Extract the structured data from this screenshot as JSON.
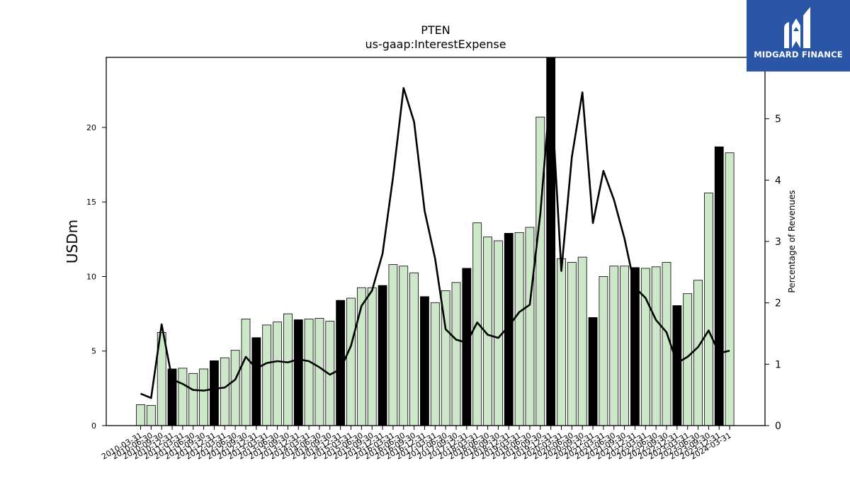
{
  "chart_data": {
    "type": "bar",
    "title": "PTEN",
    "subtitle": "us-gaap:InterestExpense",
    "ylabel": "USDm",
    "y2label": "Percentage of Revenues",
    "ylim": [
      0,
      24.7
    ],
    "y2lim": [
      0,
      6.0
    ],
    "yticks": [
      0,
      5,
      10,
      15,
      20
    ],
    "y2ticks": [
      0,
      1,
      2,
      3,
      4,
      5
    ],
    "legend": "none",
    "grid": false,
    "categories": [
      "2010-03-31",
      "2010-06-30",
      "2010-09-30",
      "2010-12-31",
      "2011-03-31",
      "2011-06-30",
      "2011-09-30",
      "2011-12-31",
      "2012-03-31",
      "2012-06-30",
      "2012-09-30",
      "2012-12-31",
      "2013-03-31",
      "2013-06-30",
      "2013-09-30",
      "2013-12-31",
      "2014-03-31",
      "2014-06-30",
      "2014-09-30",
      "2014-12-31",
      "2015-03-31",
      "2015-06-30",
      "2015-09-30",
      "2015-12-31",
      "2016-03-31",
      "2016-06-30",
      "2016-09-30",
      "2016-12-31",
      "2017-03-31",
      "2017-06-30",
      "2017-09-30",
      "2017-12-31",
      "2018-03-31",
      "2018-06-30",
      "2018-09-30",
      "2018-12-31",
      "2019-03-31",
      "2019-06-30",
      "2019-09-30",
      "2019-12-31",
      "2020-03-31",
      "2020-06-30",
      "2020-09-30",
      "2020-12-31",
      "2021-03-31",
      "2021-06-30",
      "2021-09-30",
      "2021-12-31",
      "2022-03-31",
      "2022-06-30",
      "2022-09-30",
      "2022-12-31",
      "2023-03-31",
      "2023-06-30",
      "2023-09-30",
      "2023-12-31",
      "2024-03-31"
    ],
    "series": [
      {
        "kind": "bar",
        "axis": "left",
        "values": [
          1.4,
          1.35,
          6.25,
          3.8,
          3.85,
          3.5,
          3.8,
          4.35,
          4.55,
          5.05,
          7.15,
          5.9,
          6.75,
          6.95,
          7.5,
          7.1,
          7.15,
          7.2,
          7.0,
          8.4,
          8.55,
          9.25,
          9.25,
          9.4,
          10.8,
          10.7,
          10.25,
          8.65,
          8.25,
          9.05,
          9.6,
          10.55,
          13.6,
          12.65,
          12.4,
          12.9,
          12.95,
          13.3,
          20.7,
          24.9,
          11.2,
          10.95,
          11.3,
          7.25,
          10.0,
          10.7,
          10.7,
          10.6,
          10.55,
          10.65,
          10.95,
          8.05,
          8.85,
          9.75,
          15.6,
          18.7,
          18.3
        ],
        "highlight": [
          3,
          7,
          11,
          15,
          19,
          23,
          27,
          31,
          35,
          39,
          43,
          47,
          51,
          55
        ],
        "colors": {
          "normal": "#cde8c8",
          "highlight": "#000000",
          "edge": "#000000"
        }
      },
      {
        "kind": "line",
        "axis": "right",
        "color": "#000000",
        "values": [
          0.52,
          0.45,
          1.65,
          0.75,
          0.68,
          0.58,
          0.57,
          0.6,
          0.62,
          0.75,
          1.12,
          0.93,
          1.02,
          1.05,
          1.03,
          1.08,
          1.05,
          0.95,
          0.83,
          0.92,
          1.3,
          1.95,
          2.2,
          2.8,
          4.05,
          5.5,
          4.95,
          3.5,
          2.72,
          1.57,
          1.4,
          1.35,
          1.68,
          1.48,
          1.43,
          1.62,
          1.85,
          1.97,
          3.45,
          5.55,
          2.52,
          4.38,
          5.43,
          3.3,
          4.15,
          3.68,
          3.05,
          2.25,
          2.08,
          1.72,
          1.52,
          1.02,
          1.12,
          1.28,
          1.55,
          1.18,
          1.22
        ]
      }
    ]
  },
  "brand": {
    "name": "MIDGARD FINANCE",
    "logo_icon": "midgard-logo-icon",
    "background": "#2b56a8"
  }
}
